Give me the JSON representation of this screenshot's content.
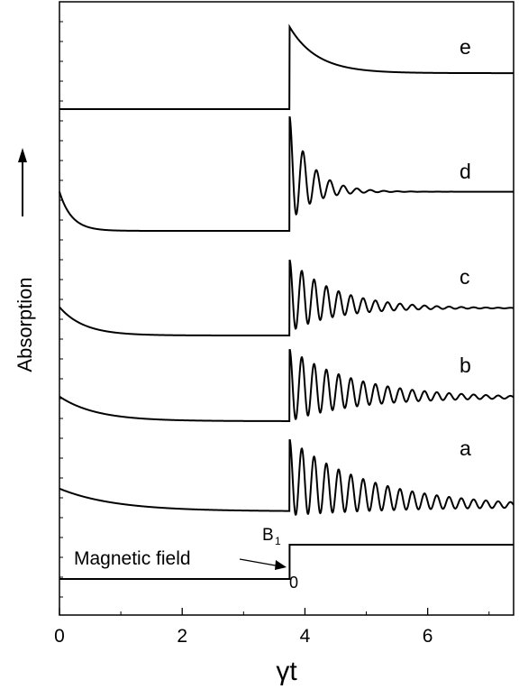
{
  "chart_data": {
    "type": "line",
    "xlabel": "γt",
    "ylabel": "Absorption",
    "xlim": [
      0,
      7.4
    ],
    "x_ticks": [
      "0",
      "2",
      "4",
      "6"
    ],
    "x_tick_values": [
      0,
      2,
      4,
      6
    ],
    "grid": false,
    "series": [
      {
        "name": "a",
        "t0": 3.75,
        "start_level": 0.6,
        "baseline": 0.0,
        "step_level": 0.9,
        "final_level": 0.12,
        "pre_decay": 0.9,
        "post_decay": 1.3,
        "osc_period": 0.2,
        "osc_amp": 1.0,
        "osc_decay": 1.4
      },
      {
        "name": "b",
        "t0": 3.75,
        "start_level": 0.65,
        "baseline": 0.0,
        "step_level": 0.95,
        "final_level": 0.62,
        "pre_decay": 0.6,
        "post_decay": 1.1,
        "osc_period": 0.2,
        "osc_amp": 0.95,
        "osc_decay": 1.1
      },
      {
        "name": "c",
        "t0": 3.75,
        "start_level": 0.75,
        "baseline": 0.0,
        "step_level": 1.05,
        "final_level": 0.72,
        "pre_decay": 0.4,
        "post_decay": 0.8,
        "osc_period": 0.2,
        "osc_amp": 0.95,
        "osc_decay": 0.75
      },
      {
        "name": "d",
        "t0": 3.75,
        "start_level": 0.7,
        "baseline": 0.0,
        "step_level": 1.1,
        "final_level": 0.7,
        "pre_decay": 0.2,
        "post_decay": 0.35,
        "osc_period": 0.22,
        "osc_amp": 0.95,
        "osc_decay": 0.35
      },
      {
        "name": "e",
        "t0": 3.75,
        "start_level": 0.0,
        "baseline": 0.0,
        "step_level": 1.6,
        "final_level": 0.7,
        "pre_decay": 0.05,
        "post_decay": 0.45,
        "osc_period": 0.3,
        "osc_amp": 0.0,
        "osc_decay": 0.3
      }
    ],
    "magnetic_field": {
      "t0": 3.75,
      "low": 0,
      "high": 1
    },
    "annotations": {
      "magnetic_field_label": "Magnetic field",
      "b1_label": "B",
      "b1_sub": "1",
      "zero_label": "0"
    }
  }
}
